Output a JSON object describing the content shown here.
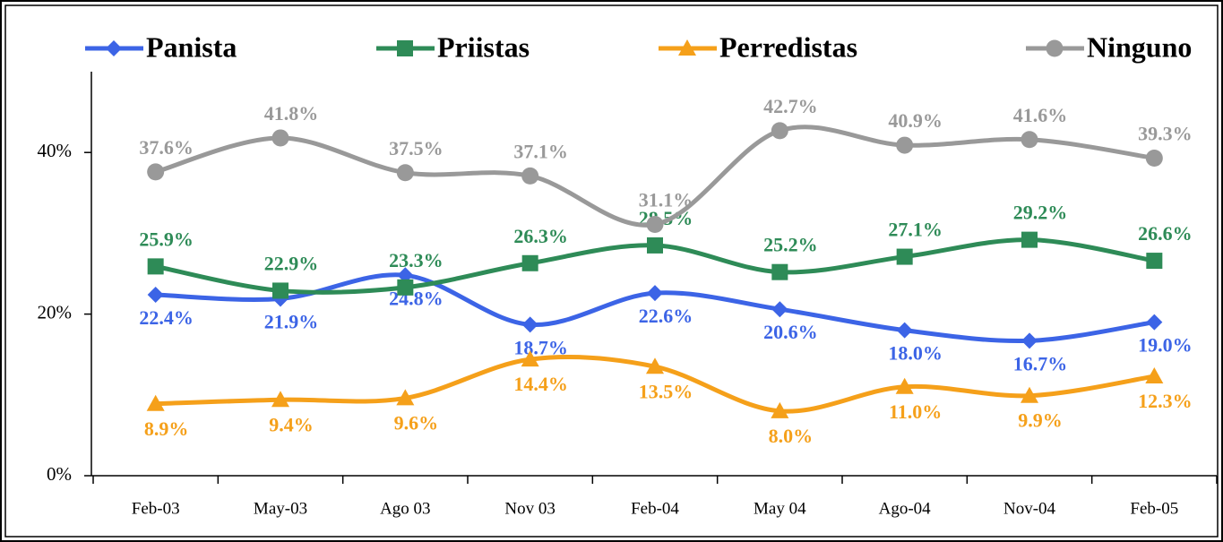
{
  "chart_data": {
    "type": "line",
    "categories": [
      "Feb-03",
      "May-03",
      "Ago 03",
      "Nov 03",
      "Feb-04",
      "May 04",
      "Ago-04",
      "Nov-04",
      "Feb-05"
    ],
    "series": [
      {
        "name": "Panista",
        "color": "#3c64e6",
        "marker": "diamond",
        "values": [
          22.4,
          21.9,
          24.8,
          18.7,
          22.6,
          20.6,
          18.0,
          16.7,
          19.0
        ],
        "value_labels": [
          "22.4%",
          "21.9%",
          "24.8%",
          "18.7%",
          "22.6%",
          "20.6%",
          "18.0%",
          "16.7%",
          "19.0%"
        ]
      },
      {
        "name": "Priistas",
        "color": "#2e8b57",
        "marker": "square",
        "values": [
          25.9,
          22.9,
          23.3,
          26.3,
          28.5,
          25.2,
          27.1,
          29.2,
          26.6
        ],
        "value_labels": [
          "25.9%",
          "22.9%",
          "23.3%",
          "26.3%",
          "28.5%",
          "25.2%",
          "27.1%",
          "29.2%",
          "26.6%"
        ]
      },
      {
        "name": "Perredistas",
        "color": "#f5a01a",
        "marker": "triangle",
        "values": [
          8.9,
          9.4,
          9.6,
          14.4,
          13.5,
          8.0,
          11.0,
          9.9,
          12.3
        ],
        "value_labels": [
          "8.9%",
          "9.4%",
          "9.6%",
          "14.4%",
          "13.5%",
          "8.0%",
          "11.0%",
          "9.9%",
          "12.3%"
        ]
      },
      {
        "name": "Ninguno",
        "color": "#999999",
        "marker": "circle",
        "values": [
          37.6,
          41.8,
          37.5,
          37.1,
          31.1,
          42.7,
          40.9,
          41.6,
          39.3
        ],
        "value_labels": [
          "37.6%",
          "41.8%",
          "37.5%",
          "37.1%",
          "31.1%",
          "42.7%",
          "40.9%",
          "41.6%",
          "39.3%"
        ]
      }
    ],
    "ylim": [
      0,
      50
    ],
    "yticks": [
      {
        "value": 0,
        "label": "0%"
      },
      {
        "value": 20,
        "label": "20%"
      },
      {
        "value": 40,
        "label": "40%"
      }
    ],
    "legend": "top"
  }
}
